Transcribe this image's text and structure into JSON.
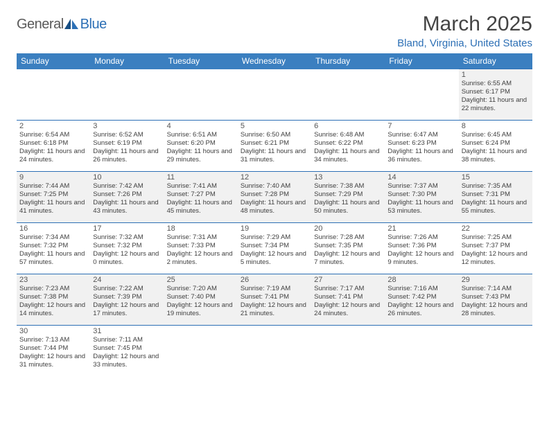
{
  "logo": {
    "text1": "General",
    "text2": "Blue"
  },
  "title": "March 2025",
  "location": "Bland, Virginia, United States",
  "colors": {
    "header_bg": "#3b7fc0",
    "header_fg": "#ffffff",
    "accent": "#2c6fb5",
    "row_alt": "#f1f1f1",
    "text": "#404040"
  },
  "dayHeaders": [
    "Sunday",
    "Monday",
    "Tuesday",
    "Wednesday",
    "Thursday",
    "Friday",
    "Saturday"
  ],
  "leadingBlanks": 6,
  "days": [
    {
      "n": 1,
      "sr": "6:55 AM",
      "ss": "6:17 PM",
      "dl": "11 hours and 22 minutes."
    },
    {
      "n": 2,
      "sr": "6:54 AM",
      "ss": "6:18 PM",
      "dl": "11 hours and 24 minutes."
    },
    {
      "n": 3,
      "sr": "6:52 AM",
      "ss": "6:19 PM",
      "dl": "11 hours and 26 minutes."
    },
    {
      "n": 4,
      "sr": "6:51 AM",
      "ss": "6:20 PM",
      "dl": "11 hours and 29 minutes."
    },
    {
      "n": 5,
      "sr": "6:50 AM",
      "ss": "6:21 PM",
      "dl": "11 hours and 31 minutes."
    },
    {
      "n": 6,
      "sr": "6:48 AM",
      "ss": "6:22 PM",
      "dl": "11 hours and 34 minutes."
    },
    {
      "n": 7,
      "sr": "6:47 AM",
      "ss": "6:23 PM",
      "dl": "11 hours and 36 minutes."
    },
    {
      "n": 8,
      "sr": "6:45 AM",
      "ss": "6:24 PM",
      "dl": "11 hours and 38 minutes."
    },
    {
      "n": 9,
      "sr": "7:44 AM",
      "ss": "7:25 PM",
      "dl": "11 hours and 41 minutes."
    },
    {
      "n": 10,
      "sr": "7:42 AM",
      "ss": "7:26 PM",
      "dl": "11 hours and 43 minutes."
    },
    {
      "n": 11,
      "sr": "7:41 AM",
      "ss": "7:27 PM",
      "dl": "11 hours and 45 minutes."
    },
    {
      "n": 12,
      "sr": "7:40 AM",
      "ss": "7:28 PM",
      "dl": "11 hours and 48 minutes."
    },
    {
      "n": 13,
      "sr": "7:38 AM",
      "ss": "7:29 PM",
      "dl": "11 hours and 50 minutes."
    },
    {
      "n": 14,
      "sr": "7:37 AM",
      "ss": "7:30 PM",
      "dl": "11 hours and 53 minutes."
    },
    {
      "n": 15,
      "sr": "7:35 AM",
      "ss": "7:31 PM",
      "dl": "11 hours and 55 minutes."
    },
    {
      "n": 16,
      "sr": "7:34 AM",
      "ss": "7:32 PM",
      "dl": "11 hours and 57 minutes."
    },
    {
      "n": 17,
      "sr": "7:32 AM",
      "ss": "7:32 PM",
      "dl": "12 hours and 0 minutes."
    },
    {
      "n": 18,
      "sr": "7:31 AM",
      "ss": "7:33 PM",
      "dl": "12 hours and 2 minutes."
    },
    {
      "n": 19,
      "sr": "7:29 AM",
      "ss": "7:34 PM",
      "dl": "12 hours and 5 minutes."
    },
    {
      "n": 20,
      "sr": "7:28 AM",
      "ss": "7:35 PM",
      "dl": "12 hours and 7 minutes."
    },
    {
      "n": 21,
      "sr": "7:26 AM",
      "ss": "7:36 PM",
      "dl": "12 hours and 9 minutes."
    },
    {
      "n": 22,
      "sr": "7:25 AM",
      "ss": "7:37 PM",
      "dl": "12 hours and 12 minutes."
    },
    {
      "n": 23,
      "sr": "7:23 AM",
      "ss": "7:38 PM",
      "dl": "12 hours and 14 minutes."
    },
    {
      "n": 24,
      "sr": "7:22 AM",
      "ss": "7:39 PM",
      "dl": "12 hours and 17 minutes."
    },
    {
      "n": 25,
      "sr": "7:20 AM",
      "ss": "7:40 PM",
      "dl": "12 hours and 19 minutes."
    },
    {
      "n": 26,
      "sr": "7:19 AM",
      "ss": "7:41 PM",
      "dl": "12 hours and 21 minutes."
    },
    {
      "n": 27,
      "sr": "7:17 AM",
      "ss": "7:41 PM",
      "dl": "12 hours and 24 minutes."
    },
    {
      "n": 28,
      "sr": "7:16 AM",
      "ss": "7:42 PM",
      "dl": "12 hours and 26 minutes."
    },
    {
      "n": 29,
      "sr": "7:14 AM",
      "ss": "7:43 PM",
      "dl": "12 hours and 28 minutes."
    },
    {
      "n": 30,
      "sr": "7:13 AM",
      "ss": "7:44 PM",
      "dl": "12 hours and 31 minutes."
    },
    {
      "n": 31,
      "sr": "7:11 AM",
      "ss": "7:45 PM",
      "dl": "12 hours and 33 minutes."
    }
  ],
  "labels": {
    "sunrise": "Sunrise:",
    "sunset": "Sunset:",
    "daylight": "Daylight:"
  }
}
